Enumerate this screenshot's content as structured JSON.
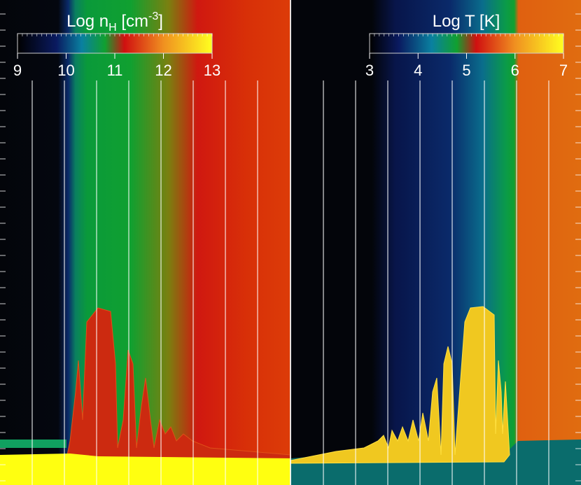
{
  "panels": [
    {
      "colorbar": {
        "label": {
          "text": "Log n",
          "subscript": "H",
          "unit": " [cm",
          "superscript": "-3",
          "close": "]"
        },
        "ticks": [
          9,
          10,
          11,
          12,
          13
        ]
      }
    },
    {
      "colorbar": {
        "label": {
          "text": "Log T [K]"
        },
        "ticks": [
          3,
          4,
          5,
          6,
          7
        ]
      }
    }
  ]
}
